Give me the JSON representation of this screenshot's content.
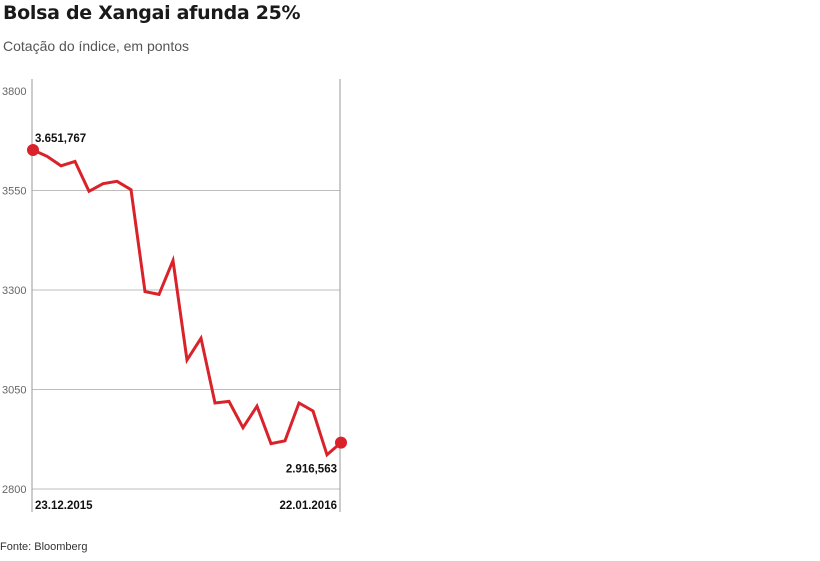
{
  "header": {
    "title": "Bolsa de Xangai afunda 25%",
    "subtitle": "Cotação do índice, em pontos"
  },
  "footer": {
    "source": "Fonte: Bloomberg"
  },
  "colors": {
    "line": "#d9222a",
    "grid": "#bdbdbd",
    "axis": "#9a9a9a",
    "tick_text": "#666666",
    "label_text": "#111111"
  },
  "chart_data": {
    "type": "line",
    "title": "Bolsa de Xangai afunda 25%",
    "subtitle": "Cotação do índice, em pontos",
    "xlabel": "",
    "ylabel": "",
    "ylim": [
      2800,
      3800
    ],
    "yticks": [
      3800,
      3550,
      3300,
      3050,
      2800
    ],
    "ytick_labels": [
      "3800",
      "3550",
      "3300",
      "3050",
      "2800"
    ],
    "x_start_label": "23.12.2015",
    "x_end_label": "22.01.2016",
    "grid": true,
    "series": [
      {
        "values": [
          3651.767,
          3636,
          3612,
          3623,
          3548,
          3567,
          3573,
          3552,
          3296,
          3289,
          3374,
          3124,
          3179,
          3016,
          3020,
          2954,
          3008,
          2914,
          2921,
          3016,
          2996,
          2886,
          2916.563
        ]
      }
    ],
    "annotations": [
      {
        "point": "first",
        "text": "3.651,767"
      },
      {
        "point": "last",
        "text": "2.916,563"
      }
    ]
  }
}
